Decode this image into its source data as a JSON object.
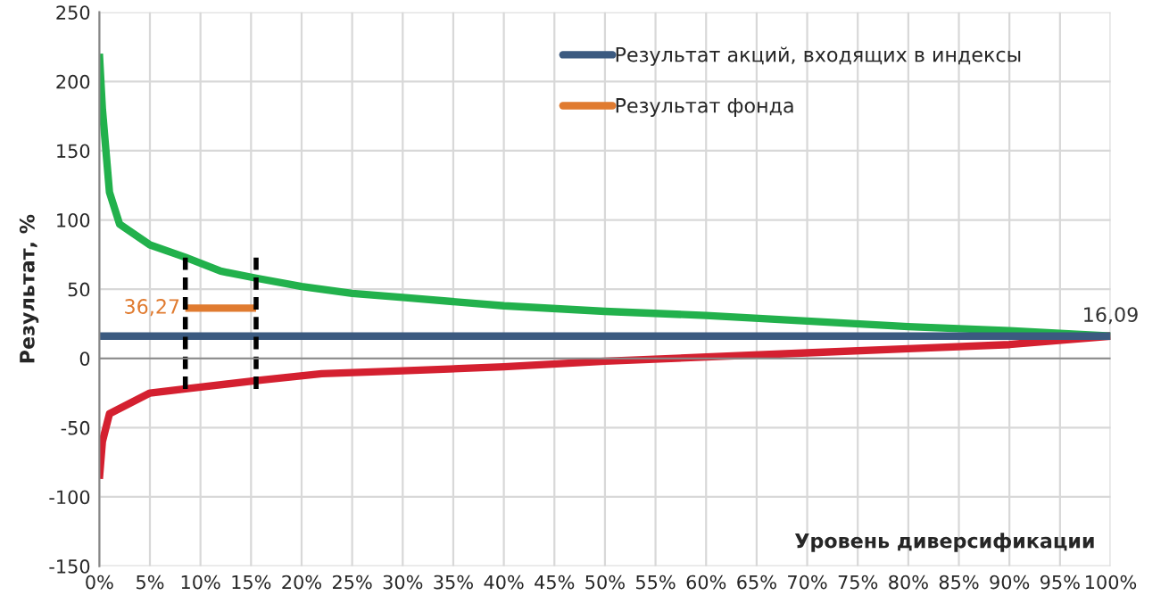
{
  "chart_data": {
    "type": "line",
    "xlabel": "Уровень диверсификации",
    "ylabel": "Результат, %",
    "xlim": [
      0,
      100
    ],
    "ylim": [
      -150,
      250
    ],
    "xticks": [
      {
        "value": 0,
        "label": "0%"
      },
      {
        "value": 5,
        "label": "5%"
      },
      {
        "value": 10,
        "label": "10%"
      },
      {
        "value": 15,
        "label": "15%"
      },
      {
        "value": 20,
        "label": "20%"
      },
      {
        "value": 25,
        "label": "25%"
      },
      {
        "value": 30,
        "label": "30%"
      },
      {
        "value": 35,
        "label": "35%"
      },
      {
        "value": 40,
        "label": "40%"
      },
      {
        "value": 45,
        "label": "45%"
      },
      {
        "value": 50,
        "label": "50%"
      },
      {
        "value": 55,
        "label": "55%"
      },
      {
        "value": 60,
        "label": "60%"
      },
      {
        "value": 65,
        "label": "65%"
      },
      {
        "value": 70,
        "label": "70%"
      },
      {
        "value": 75,
        "label": "75%"
      },
      {
        "value": 80,
        "label": "80%"
      },
      {
        "value": 85,
        "label": "85%"
      },
      {
        "value": 90,
        "label": "90%"
      },
      {
        "value": 95,
        "label": "95%"
      },
      {
        "value": 100,
        "label": "100%"
      }
    ],
    "yticks": [
      -150,
      -100,
      -50,
      0,
      50,
      100,
      150,
      200,
      250
    ],
    "grid": true,
    "legend": "top right",
    "marker": "none",
    "series": [
      {
        "color": "#22b14c",
        "x": [
          0,
          0.3,
          1,
          2,
          5,
          8.5,
          12,
          15.5,
          20,
          25,
          30,
          40,
          50,
          60,
          70,
          80,
          90,
          100
        ],
        "values": [
          220,
          180,
          120,
          97,
          82,
          73,
          63,
          58,
          52,
          47,
          44,
          38,
          34,
          31,
          27,
          23,
          20,
          16.09
        ]
      },
      {
        "color": "#d42030",
        "x": [
          0,
          0.3,
          1,
          5,
          8.5,
          15.5,
          22,
          30,
          40,
          50,
          60,
          70,
          80,
          90,
          100
        ],
        "values": [
          -87,
          -60,
          -40,
          -25,
          -22,
          -16,
          -11,
          -9,
          -6,
          -2,
          1,
          4,
          7,
          10,
          16.09
        ]
      },
      {
        "name": "Результат акций, входящих в индексы",
        "color": "#3b5a80",
        "x": [
          0,
          100
        ],
        "values": [
          16.09,
          16.09
        ]
      },
      {
        "name": "Результат фонда",
        "color": "#e07b30",
        "x": [
          8.5,
          15.5
        ],
        "values": [
          36.27,
          36.27
        ]
      },
      {
        "color": "#000000",
        "line_style": "dashed",
        "x": [
          8.5,
          8.5
        ],
        "values": [
          -22,
          74
        ]
      },
      {
        "color": "#000000",
        "line_style": "dashed",
        "x": [
          15.5,
          15.5
        ],
        "values": [
          -22,
          74
        ]
      }
    ],
    "annotations": [
      {
        "text": "36,27",
        "x": 8.5,
        "y": 36.27
      },
      {
        "text": "16,09",
        "x": 100,
        "y": 16.09
      }
    ]
  }
}
